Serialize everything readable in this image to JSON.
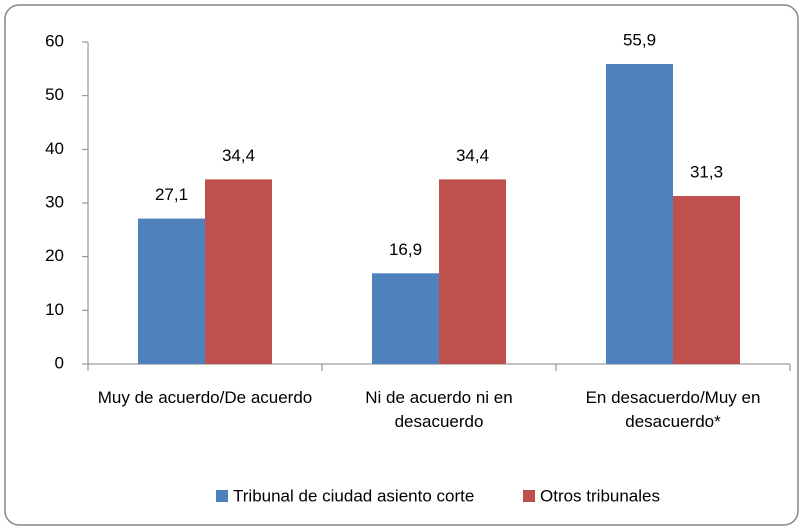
{
  "chart_data": {
    "type": "bar",
    "categories": [
      "Muy de acuerdo/De acuerdo",
      "Ni de acuerdo ni en desacuerdo",
      "En desacuerdo/Muy en desacuerdo*"
    ],
    "series": [
      {
        "name": "Tribunal de ciudad asiento corte",
        "color": "#4f81bd",
        "values": [
          27.1,
          16.9,
          55.9
        ],
        "value_labels": [
          "27,1",
          "16,9",
          "55,9"
        ]
      },
      {
        "name": "Otros tribunales",
        "color": "#c0504d",
        "values": [
          34.4,
          34.4,
          31.3
        ],
        "value_labels": [
          "34,4",
          "34,4",
          "31,3"
        ]
      }
    ],
    "ylim": [
      0,
      60
    ],
    "yticks": [
      0,
      10,
      20,
      30,
      40,
      50,
      60
    ],
    "grid": false,
    "legend": "bottom"
  }
}
